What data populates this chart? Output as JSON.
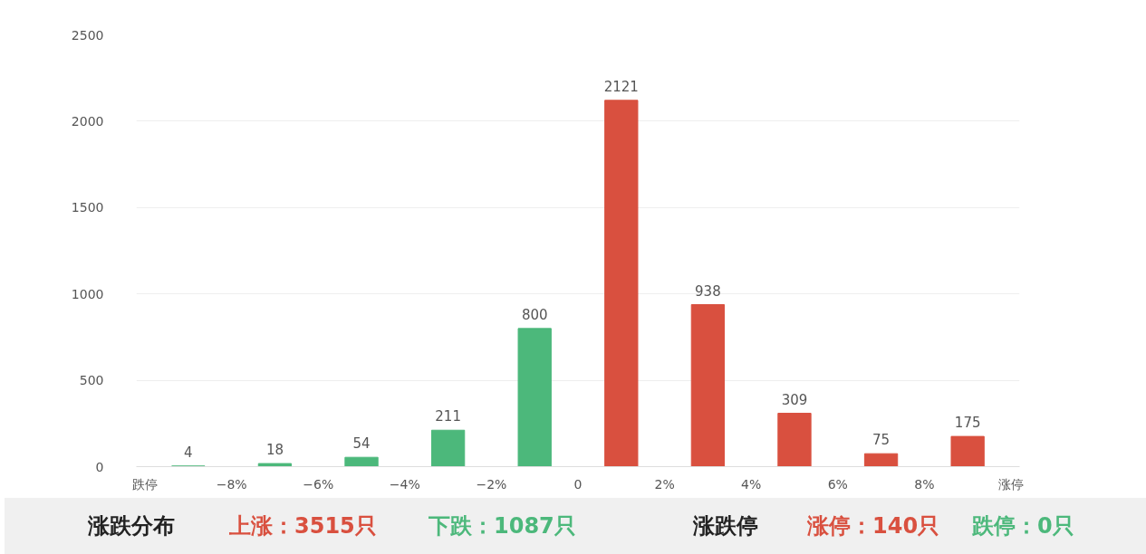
{
  "chart_data": {
    "type": "bar",
    "x": [
      -9,
      -7,
      -5,
      -3,
      -1,
      1,
      3,
      5,
      7,
      9
    ],
    "values": [
      4,
      18,
      54,
      211,
      800,
      2121,
      938,
      309,
      75,
      175
    ],
    "colors": [
      "#4cb87b",
      "#4cb87b",
      "#4cb87b",
      "#4cb87b",
      "#4cb87b",
      "#d9503f",
      "#d9503f",
      "#d9503f",
      "#d9503f",
      "#d9503f"
    ],
    "xlim": [
      -10.2,
      10.2
    ],
    "xticks": [
      {
        "value": -10,
        "label": "跌停"
      },
      {
        "value": -8,
        "label": "−8%"
      },
      {
        "value": -6,
        "label": "−6%"
      },
      {
        "value": -4,
        "label": "−4%"
      },
      {
        "value": -2,
        "label": "−2%"
      },
      0,
      {
        "value": 2,
        "label": "2%"
      },
      {
        "value": 4,
        "label": "4%"
      },
      {
        "value": 6,
        "label": "6%"
      },
      {
        "value": 8,
        "label": "8%"
      },
      {
        "value": 10,
        "label": "涨停"
      }
    ],
    "ylim": [
      0,
      2500
    ],
    "yticks": [
      0,
      500,
      1000,
      1500,
      2000,
      2500
    ],
    "grid": "y",
    "data_labels": true,
    "annotations": [
      "涨跌分布",
      "上涨：3515只",
      "下跌：1087只",
      "涨跌停",
      "涨停：140只",
      "跌停：0只"
    ]
  }
}
